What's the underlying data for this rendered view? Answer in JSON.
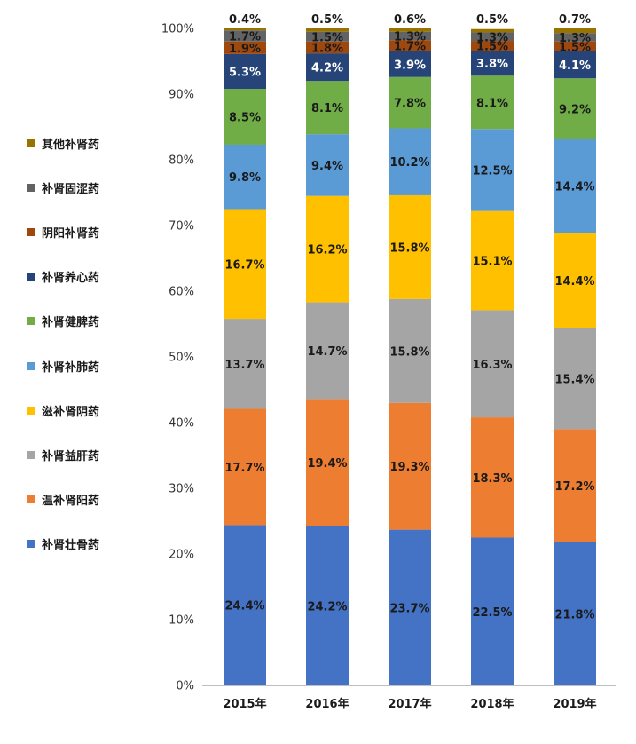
{
  "chart_data": {
    "type": "bar",
    "stacked": true,
    "percent_stacked": true,
    "categories": [
      "2015年",
      "2016年",
      "2017年",
      "2018年",
      "2019年"
    ],
    "ylim": [
      0,
      100
    ],
    "yticks": [
      "0%",
      "10%",
      "20%",
      "30%",
      "40%",
      "50%",
      "60%",
      "70%",
      "80%",
      "90%",
      "100%"
    ],
    "legend_position": "left",
    "series": [
      {
        "name": "补肾壮骨药",
        "color": "#4472C4",
        "values": [
          24.4,
          24.2,
          23.7,
          22.5,
          21.8
        ],
        "labels": [
          "24.4%",
          "24.2%",
          "23.7%",
          "22.5%",
          "21.8%"
        ]
      },
      {
        "name": "温补肾阳药",
        "color": "#ED7D31",
        "values": [
          17.7,
          19.4,
          19.3,
          18.3,
          17.2
        ],
        "labels": [
          "17.7%",
          "19.4%",
          "19.3%",
          "18.3%",
          "17.2%"
        ]
      },
      {
        "name": "补肾益肝药",
        "color": "#A5A5A5",
        "values": [
          13.7,
          14.7,
          15.8,
          16.3,
          15.4
        ],
        "labels": [
          "13.7%",
          "14.7%",
          "15.8%",
          "16.3%",
          "15.4%"
        ]
      },
      {
        "name": "滋补肾阴药",
        "color": "#FFC000",
        "values": [
          16.7,
          16.2,
          15.8,
          15.1,
          14.4
        ],
        "labels": [
          "16.7%",
          "16.2%",
          "15.8%",
          "15.1%",
          "14.4%"
        ]
      },
      {
        "name": "补肾补肺药",
        "color": "#5B9BD5",
        "values": [
          9.8,
          9.4,
          10.2,
          12.5,
          14.4
        ],
        "labels": [
          "9.8%",
          "9.4%",
          "10.2%",
          "12.5%",
          "14.4%"
        ]
      },
      {
        "name": "补肾健脾药",
        "color": "#70AD47",
        "values": [
          8.5,
          8.1,
          7.8,
          8.1,
          9.2
        ],
        "labels": [
          "8.5%",
          "8.1%",
          "7.8%",
          "8.1%",
          "9.2%"
        ]
      },
      {
        "name": "补肾养心药",
        "color": "#264478",
        "values": [
          5.3,
          4.2,
          3.9,
          3.8,
          4.1
        ],
        "labels": [
          "5.3%",
          "4.2%",
          "3.9%",
          "3.8%",
          "4.1%"
        ]
      },
      {
        "name": "阴阳补肾药",
        "color": "#9E480E",
        "values": [
          1.9,
          1.8,
          1.7,
          1.5,
          1.5
        ],
        "labels": [
          "1.9%",
          "1.8%",
          "1.7%",
          "1.5%",
          "1.5%"
        ]
      },
      {
        "name": "补肾固涩药",
        "color": "#636363",
        "values": [
          1.7,
          1.5,
          1.3,
          1.3,
          1.3
        ],
        "labels": [
          "1.7%",
          "1.5%",
          "1.3%",
          "1.3%",
          "1.3%"
        ]
      },
      {
        "name": "其他补肾药",
        "color": "#997300",
        "values": [
          0.4,
          0.5,
          0.6,
          0.5,
          0.7
        ],
        "labels": [
          "0.4%",
          "0.5%",
          "0.6%",
          "0.5%",
          "0.7%"
        ]
      }
    ]
  }
}
